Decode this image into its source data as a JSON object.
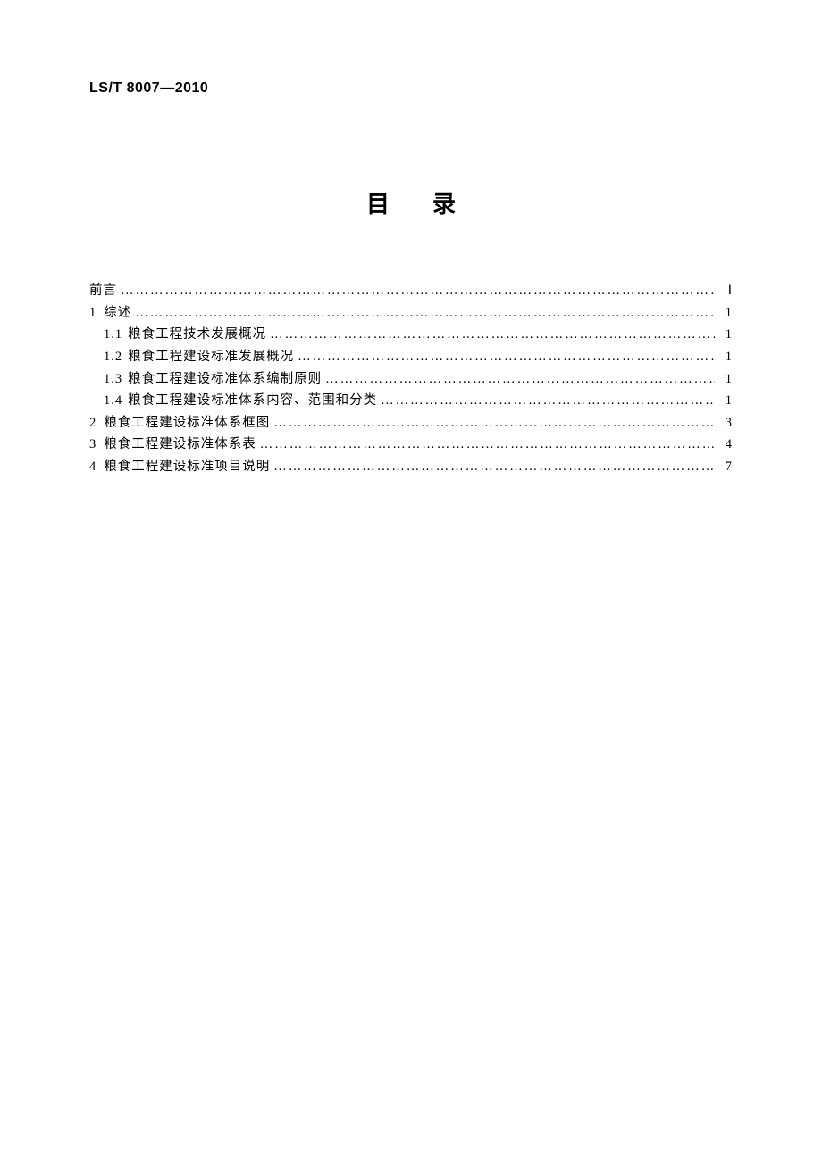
{
  "document": {
    "standard_code": "LS/T 8007—2010",
    "title": "目录",
    "background_color": "#ffffff",
    "text_color": "#000000",
    "body_font_family": "SimSun",
    "heading_font_family": "SimHei",
    "body_font_size": 14.5,
    "title_font_size": 26
  },
  "toc": {
    "entries": [
      {
        "number": "",
        "label": "前言",
        "page": "Ⅰ",
        "indent": 0
      },
      {
        "number": "1",
        "label": "综述",
        "page": "1",
        "indent": 0
      },
      {
        "number": "1.1",
        "label": "粮食工程技术发展概况",
        "page": "1",
        "indent": 1
      },
      {
        "number": "1.2",
        "label": "粮食工程建设标准发展概况",
        "page": "1",
        "indent": 1
      },
      {
        "number": "1.3",
        "label": "粮食工程建设标准体系编制原则",
        "page": "1",
        "indent": 1
      },
      {
        "number": "1.4",
        "label": "粮食工程建设标准体系内容、范围和分类",
        "page": "1",
        "indent": 1
      },
      {
        "number": "2",
        "label": "粮食工程建设标准体系框图",
        "page": "3",
        "indent": 0
      },
      {
        "number": "3",
        "label": "粮食工程建设标准体系表",
        "page": "4",
        "indent": 0
      },
      {
        "number": "4",
        "label": "粮食工程建设标准项目说明",
        "page": "7",
        "indent": 0
      }
    ]
  }
}
